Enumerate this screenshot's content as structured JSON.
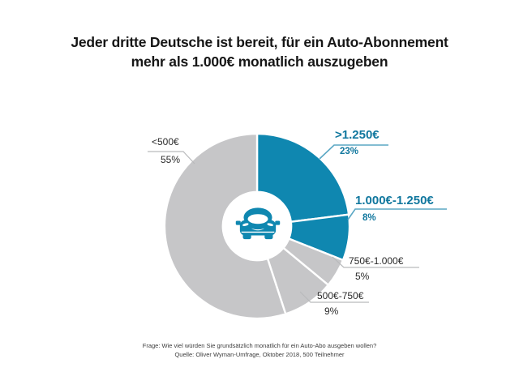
{
  "title": {
    "line1": "Jeder dritte Deutsche ist bereit, für ein Auto-Abonnement",
    "line2": "mehr als 1.000€ monatlich auszugeben"
  },
  "chart_data": {
    "type": "pie",
    "subtype": "donut",
    "title": "Jeder dritte Deutsche ist bereit, für ein Auto-Abonnement mehr als 1.000€ monatlich auszugeben",
    "unit": "percent",
    "categories": [
      ">1.250€",
      "1.000€-1.250€",
      "750€-1.000€",
      "500€-750€",
      "<500€"
    ],
    "values": [
      23,
      8,
      5,
      9,
      55
    ],
    "segments": [
      {
        "label": ">1.250€",
        "value": 23,
        "display": "23%",
        "color": "#0f87b0",
        "highlighted": true
      },
      {
        "label": "1.000€-1.250€",
        "value": 8,
        "display": "8%",
        "color": "#0f87b0",
        "highlighted": true
      },
      {
        "label": "750€-1.000€",
        "value": 5,
        "display": "5%",
        "color": "#c6c6c8",
        "highlighted": false
      },
      {
        "label": "500€-750€",
        "value": 9,
        "display": "9%",
        "color": "#c6c6c8",
        "highlighted": false
      },
      {
        "label": "<500€",
        "value": 55,
        "display": "55%",
        "color": "#c6c6c8",
        "highlighted": false
      }
    ],
    "start_angle_deg": 0,
    "direction": "clockwise",
    "donut_hole_ratio": 0.37,
    "legend_position": "callout-labels",
    "center_icon": "car-front-icon"
  },
  "footer": {
    "line1": "Frage: Wie viel würden Sie grundsätzlich monatlich für ein Auto-Abo ausgeben wollen?",
    "line2": "Quelle: Oliver Wyman-Umfrage, Oktober 2018, 500 Teilnehmer"
  },
  "colors": {
    "highlight": "#0f87b0",
    "muted": "#c6c6c8",
    "teal_text": "#10779e",
    "title_text": "#161616",
    "body_text": "#2b2b2b",
    "leader_teal": "#5aa7c4",
    "leader_gray": "#b9babc",
    "background": "#ffffff"
  }
}
